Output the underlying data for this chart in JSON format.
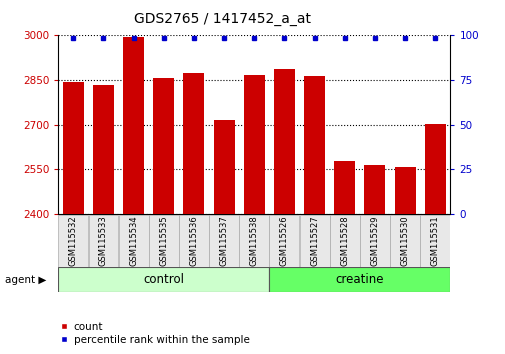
{
  "title": "GDS2765 / 1417452_a_at",
  "categories": [
    "GSM115532",
    "GSM115533",
    "GSM115534",
    "GSM115535",
    "GSM115536",
    "GSM115537",
    "GSM115538",
    "GSM115526",
    "GSM115527",
    "GSM115528",
    "GSM115529",
    "GSM115530",
    "GSM115531"
  ],
  "counts": [
    2843,
    2833,
    2993,
    2858,
    2875,
    2715,
    2868,
    2887,
    2865,
    2578,
    2565,
    2558,
    2704
  ],
  "percentiles": [
    100,
    100,
    100,
    100,
    100,
    100,
    100,
    100,
    100,
    100,
    100,
    100,
    100
  ],
  "bar_color": "#cc0000",
  "dot_color": "#0000cc",
  "ylim_left": [
    2400,
    3000
  ],
  "ylim_right": [
    0,
    100
  ],
  "yticks_left": [
    2400,
    2550,
    2700,
    2850,
    3000
  ],
  "yticks_right": [
    0,
    25,
    50,
    75,
    100
  ],
  "n_control": 7,
  "n_creatine": 6,
  "control_color": "#ccffcc",
  "creatine_color": "#66ff66",
  "agent_label": "agent",
  "legend_count": "count",
  "legend_percentile": "percentile rank within the sample",
  "background_color": "#ffffff",
  "tick_label_color_left": "#cc0000",
  "tick_label_color_right": "#0000cc",
  "xlabel_box_color": "#e8e8e8",
  "xlabel_edge_color": "#aaaaaa"
}
